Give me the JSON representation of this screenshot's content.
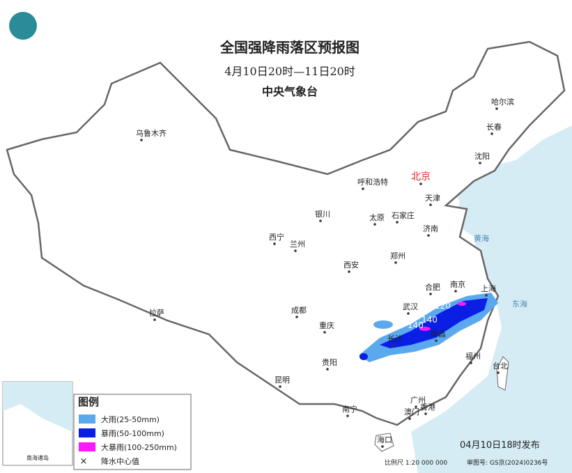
{
  "header": {
    "title": "全国强降雨落区预报图",
    "subtitle": "4月10日20时—11日20时",
    "agency": "中央气象台"
  },
  "cities": [
    "乌鲁木齐",
    "哈尔滨",
    "长春",
    "沈阳",
    "北京",
    "呼和浩特",
    "天津",
    "银川",
    "太原",
    "石家庄",
    "济南",
    "西宁",
    "兰州",
    "郑州",
    "西安",
    "合肥",
    "南京",
    "上海",
    "拉萨",
    "成都",
    "武汉",
    "重庆",
    "长沙",
    "南昌",
    "福州",
    "台北",
    "贵阳",
    "昆明",
    "南宁",
    "广州",
    "澳门",
    "香港",
    "海口"
  ],
  "seas": [
    "黄海",
    "东海"
  ],
  "rain_centers": [
    "120",
    "140",
    "140"
  ],
  "inset": {
    "label": "南海诸岛"
  },
  "legend": {
    "title": "图例",
    "items": [
      "大雨(25-50mm)",
      "暴雨(50-100mm)",
      "大暴雨(100-250mm)",
      "降水中心值"
    ]
  },
  "footer": {
    "issued": "04月10日18时发布",
    "scale": "比例尺 1:20 000 000",
    "approval": "审图号: GS京(2024)0236号"
  }
}
